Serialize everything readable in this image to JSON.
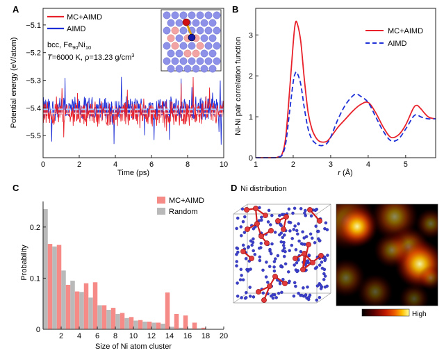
{
  "panels": {
    "A": "A",
    "B": "B",
    "C": "C",
    "D": "D"
  },
  "panel_a": {
    "info_line1_main": "bcc, Fe",
    "info_line1_sub1": "90",
    "info_line1_mid": "Ni",
    "info_line1_sub2": "10",
    "info_line2_T": "T",
    "info_line2_rest": "=6000 K, ρ=13.23 g/cm",
    "info_line2_sup": "3"
  },
  "panel_b": {
    "xlabel_r": "r",
    "xlabel_unit": " (Å)"
  },
  "panel_d": {
    "title": "Ni distribution",
    "heatmap_legend_high": "High",
    "heatmap_colors": [
      "#000000",
      "#5a0000",
      "#b01000",
      "#e84a00",
      "#ffb000",
      "#ffff90"
    ]
  },
  "colors": {
    "mc_aimd": "#e8212a",
    "aimd": "#1d2fd6",
    "mc_bar": "#f58a86",
    "random_bar": "#b9b9b9",
    "ni_atom": "#e23a3a",
    "fe_atom": "#3b3fc9"
  },
  "chart_data": [
    {
      "panel": "A",
      "type": "line",
      "xlabel": "Time (ps)",
      "ylabel": "Potential energy (eV/atom)",
      "xlim": [
        0,
        10
      ],
      "ylim": [
        -5.58,
        -5.04
      ],
      "xticks": [
        0,
        2,
        4,
        6,
        8,
        10
      ],
      "yticks": [
        -5.1,
        -5.2,
        -5.3,
        -5.4,
        -5.5
      ],
      "series": [
        {
          "name": "MC+AIMD",
          "color": "#e8212a",
          "mean": -5.42,
          "amplitude": 0.05
        },
        {
          "name": "AIMD",
          "color": "#1d2fd6",
          "mean": -5.405,
          "amplitude": 0.05
        }
      ],
      "mean_lines": [
        -5.405,
        -5.42
      ],
      "legend": "top-left"
    },
    {
      "panel": "B",
      "type": "line",
      "xlabel": "r (Å)",
      "ylabel": "Ni-Ni pair correlation function",
      "xlim": [
        1,
        5.8
      ],
      "ylim": [
        0,
        3.65
      ],
      "xticks": [
        1,
        2,
        3,
        4,
        5
      ],
      "yticks": [
        0,
        1,
        2,
        3
      ],
      "series": [
        {
          "name": "MC+AIMD",
          "color": "#e8212a",
          "style": "solid",
          "x": [
            1.5,
            1.6,
            1.7,
            1.8,
            1.9,
            2.0,
            2.05,
            2.1,
            2.2,
            2.3,
            2.4,
            2.5,
            2.6,
            2.7,
            2.8,
            2.9,
            3.0,
            3.2,
            3.4,
            3.6,
            3.8,
            4.0,
            4.2,
            4.4,
            4.6,
            4.8,
            5.0,
            5.2,
            5.3,
            5.4,
            5.6,
            5.8
          ],
          "y": [
            0.0,
            0.02,
            0.08,
            0.5,
            1.6,
            2.8,
            3.25,
            3.3,
            2.85,
            1.9,
            1.1,
            0.7,
            0.5,
            0.4,
            0.38,
            0.4,
            0.5,
            0.75,
            0.95,
            1.15,
            1.3,
            1.35,
            1.1,
            0.75,
            0.5,
            0.55,
            0.8,
            1.2,
            1.28,
            1.2,
            1.0,
            0.95
          ]
        },
        {
          "name": "AIMD",
          "color": "#1d2fd6",
          "style": "dashed",
          "x": [
            1.5,
            1.6,
            1.7,
            1.8,
            1.9,
            2.0,
            2.05,
            2.1,
            2.2,
            2.3,
            2.4,
            2.5,
            2.6,
            2.7,
            2.8,
            2.9,
            3.0,
            3.2,
            3.4,
            3.6,
            3.7,
            3.8,
            4.0,
            4.2,
            4.4,
            4.6,
            4.8,
            5.0,
            5.2,
            5.3,
            5.4,
            5.6,
            5.8
          ],
          "y": [
            0.0,
            0.02,
            0.06,
            0.35,
            1.1,
            1.85,
            2.05,
            2.08,
            1.8,
            1.2,
            0.7,
            0.45,
            0.35,
            0.3,
            0.3,
            0.35,
            0.5,
            0.95,
            1.3,
            1.52,
            1.55,
            1.5,
            1.35,
            1.0,
            0.65,
            0.42,
            0.45,
            0.7,
            1.0,
            1.05,
            1.0,
            0.95,
            0.95
          ]
        }
      ],
      "legend": "top-right"
    },
    {
      "panel": "C",
      "type": "bar",
      "xlabel": "Size of Ni atom cluster",
      "ylabel": "Probability",
      "xlim": [
        0,
        20
      ],
      "ylim": [
        0,
        0.25
      ],
      "xticks": [
        2,
        4,
        6,
        8,
        10,
        12,
        14,
        16,
        18,
        20
      ],
      "yticks": [
        0,
        0.1,
        0.2
      ],
      "categories": [
        1,
        2,
        3,
        4,
        5,
        6,
        7,
        8,
        9,
        10,
        11,
        12,
        13,
        14,
        15,
        16,
        17,
        18
      ],
      "series": [
        {
          "name": "MC+AIMD",
          "color": "#f58a86",
          "values": [
            0.167,
            0.165,
            0.087,
            0.074,
            0.09,
            0.092,
            0.047,
            0.042,
            0.032,
            0.024,
            0.018,
            0.015,
            0.013,
            0.072,
            0.03,
            0.027,
            0.013,
            0.003
          ]
        },
        {
          "name": "Random",
          "color": "#b9b9b9",
          "values": [
            0.235,
            0.162,
            0.115,
            0.095,
            0.073,
            0.062,
            0.047,
            0.038,
            0.03,
            0.022,
            0.017,
            0.015,
            0.013,
            0.011,
            0.005,
            0.003,
            0.002,
            0.002
          ]
        }
      ],
      "legend": "top-right"
    }
  ]
}
